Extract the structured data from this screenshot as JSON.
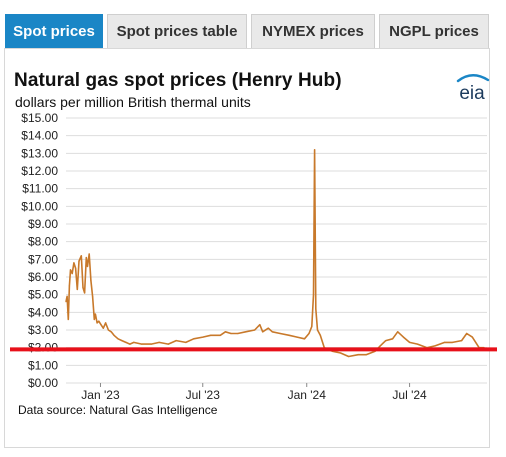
{
  "tabs": [
    {
      "label": "Spot prices",
      "active": true
    },
    {
      "label": "Spot prices table",
      "active": false
    },
    {
      "label": "NYMEX prices",
      "active": false
    },
    {
      "label": "NGPL prices",
      "active": false
    }
  ],
  "logo_text": "eia",
  "colors": {
    "tab_active": "#1a86c6",
    "series": "#c8792b",
    "reference_line": "#e8101a",
    "grid": "#dddddd"
  },
  "chart_data": {
    "type": "line",
    "title": "Natural gas spot prices (Henry Hub)",
    "subtitle": "dollars per million British thermal units",
    "source": "Data source: Natural Gas Intelligence",
    "ylim": [
      0,
      15
    ],
    "yticks": [
      "$0.00",
      "$1.00",
      "$2.00",
      "$3.00",
      "$4.00",
      "$5.00",
      "$6.00",
      "$7.00",
      "$8.00",
      "$9.00",
      "$10.00",
      "$11.00",
      "$12.00",
      "$13.00",
      "$14.00",
      "$15.00"
    ],
    "xlim": [
      "2022-11-01",
      "2024-11-15"
    ],
    "xticks": [
      {
        "label": "Jan '23",
        "date": "2023-01-01"
      },
      {
        "label": "Jul '23",
        "date": "2023-07-01"
      },
      {
        "label": "Jan '24",
        "date": "2024-01-01"
      },
      {
        "label": "Jul '24",
        "date": "2024-07-01"
      }
    ],
    "grid": true,
    "reference_line": {
      "value": 1.9
    },
    "series": [
      {
        "name": "",
        "x": [
          "2022-11-01",
          "2022-11-03",
          "2022-11-05",
          "2022-11-07",
          "2022-11-09",
          "2022-11-12",
          "2022-11-15",
          "2022-11-18",
          "2022-11-21",
          "2022-11-24",
          "2022-11-28",
          "2022-12-01",
          "2022-12-04",
          "2022-12-07",
          "2022-12-09",
          "2022-12-12",
          "2022-12-15",
          "2022-12-18",
          "2022-12-21",
          "2022-12-23",
          "2022-12-26",
          "2022-12-29",
          "2023-01-02",
          "2023-01-06",
          "2023-01-10",
          "2023-01-15",
          "2023-01-20",
          "2023-01-25",
          "2023-02-01",
          "2023-02-08",
          "2023-02-15",
          "2023-02-22",
          "2023-03-01",
          "2023-03-15",
          "2023-04-01",
          "2023-04-15",
          "2023-05-01",
          "2023-05-15",
          "2023-06-01",
          "2023-06-15",
          "2023-07-01",
          "2023-07-15",
          "2023-08-01",
          "2023-08-10",
          "2023-08-20",
          "2023-09-01",
          "2023-09-15",
          "2023-10-01",
          "2023-10-10",
          "2023-10-15",
          "2023-10-25",
          "2023-11-01",
          "2023-11-15",
          "2023-12-01",
          "2023-12-15",
          "2023-12-28",
          "2024-01-05",
          "2024-01-10",
          "2024-01-13",
          "2024-01-15",
          "2024-01-17",
          "2024-01-20",
          "2024-01-25",
          "2024-02-01",
          "2024-02-15",
          "2024-03-01",
          "2024-03-15",
          "2024-04-01",
          "2024-04-15",
          "2024-05-01",
          "2024-05-10",
          "2024-05-20",
          "2024-06-01",
          "2024-06-10",
          "2024-06-20",
          "2024-07-01",
          "2024-07-15",
          "2024-08-01",
          "2024-08-15",
          "2024-09-01",
          "2024-09-15",
          "2024-10-01",
          "2024-10-10",
          "2024-10-20",
          "2024-11-01",
          "2024-11-10"
        ],
        "y": [
          4.6,
          4.9,
          3.6,
          5.5,
          6.4,
          6.2,
          6.8,
          6.5,
          5.3,
          6.9,
          7.2,
          5.4,
          5.1,
          7.1,
          6.6,
          7.3,
          5.8,
          4.9,
          3.6,
          3.9,
          3.4,
          3.5,
          3.3,
          3.1,
          3.4,
          3.0,
          2.9,
          2.7,
          2.5,
          2.4,
          2.3,
          2.2,
          2.3,
          2.2,
          2.2,
          2.3,
          2.2,
          2.4,
          2.3,
          2.5,
          2.6,
          2.7,
          2.7,
          2.9,
          2.8,
          2.8,
          2.9,
          3.0,
          3.3,
          2.9,
          3.1,
          2.9,
          2.8,
          2.7,
          2.6,
          2.5,
          2.8,
          3.2,
          5.0,
          13.2,
          4.2,
          3.0,
          2.7,
          2.0,
          1.8,
          1.7,
          1.5,
          1.6,
          1.6,
          1.8,
          2.1,
          2.4,
          2.5,
          2.9,
          2.6,
          2.3,
          2.2,
          2.0,
          2.1,
          2.3,
          2.3,
          2.4,
          2.8,
          2.6,
          2.0,
          2.0
        ]
      }
    ]
  }
}
